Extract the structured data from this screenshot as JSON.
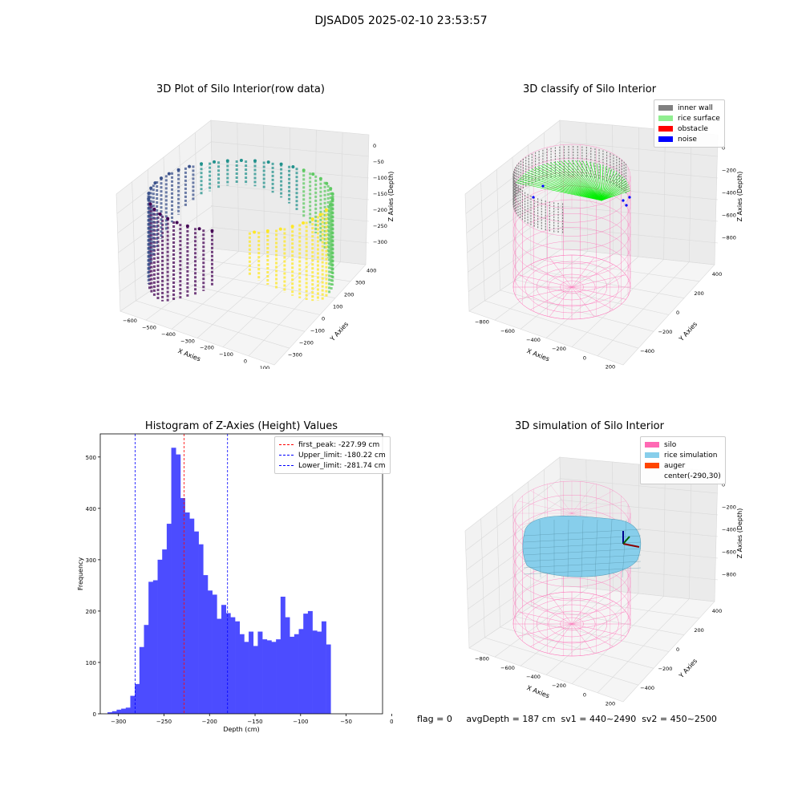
{
  "suptitle": "DJSAD05 2025-02-10 23:53:57",
  "panels": {
    "raw": {
      "title": "3D Plot of Silo Interior(row data)",
      "xlabel": "X Axies",
      "ylabel": "Y Axies",
      "zlabel": "Z Axies (Depth)",
      "xticks": [
        "−600",
        "−500",
        "−400",
        "−300",
        "−200",
        "−100",
        "0",
        "100"
      ],
      "yticks": [
        "−300",
        "−200",
        "−100",
        "0",
        "100",
        "200",
        "300",
        "400"
      ],
      "zticks": [
        "0",
        "−50",
        "−100",
        "−150",
        "−200",
        "−250",
        "−300"
      ]
    },
    "classify": {
      "title": "3D classify of Silo Interior",
      "xlabel": "X Axies",
      "ylabel": "Y Axies",
      "zlabel": "Z Axies (Depth)",
      "xticks": [
        "−800",
        "−600",
        "−400",
        "−200",
        "0",
        "200"
      ],
      "yticks": [
        "−400",
        "−200",
        "0",
        "200",
        "400"
      ],
      "zticks": [
        "0",
        "−200",
        "−400",
        "−600",
        "−800"
      ],
      "legend": [
        {
          "label": "inner wall",
          "color": "#808080"
        },
        {
          "label": "rice surface",
          "color": "#90ee90"
        },
        {
          "label": "obstacle",
          "color": "#ff0000"
        },
        {
          "label": "noise",
          "color": "#0000ff"
        }
      ]
    },
    "simulation": {
      "title": "3D simulation of Silo Interior",
      "xlabel": "X Axies",
      "ylabel": "Y Axies",
      "zlabel": "Z Axies (Depth)",
      "xticks": [
        "−800",
        "−600",
        "−400",
        "−200",
        "0",
        "200"
      ],
      "yticks": [
        "−400",
        "−200",
        "0",
        "200",
        "400"
      ],
      "zticks": [
        "0",
        "−200",
        "−400",
        "−600",
        "−800"
      ],
      "legend": [
        {
          "label": "silo",
          "color": "#ff69b4"
        },
        {
          "label": "rice simulation",
          "color": "#87ceeb"
        },
        {
          "label": "auger",
          "color": "#ff4500"
        },
        {
          "label": "center(-290,30)",
          "color": ""
        }
      ]
    }
  },
  "status": "flag = 0     avgDepth = 187 cm  sv1 = 440~2490  sv2 = 450~2500",
  "chart_data": {
    "type": "bar",
    "title": "Histogram of Z-Axies (Height) Values",
    "xlabel": "Depth (cm)",
    "ylabel": "Frequency",
    "xlim": [
      -320,
      -10
    ],
    "ylim": [
      0,
      545
    ],
    "xticks": [
      -300,
      -250,
      -200,
      -150,
      -100,
      -50,
      0
    ],
    "yticks": [
      0,
      100,
      200,
      300,
      400,
      500
    ],
    "bin_start": -312,
    "bin_width": 5,
    "bar_color": "#4c4cff",
    "values": [
      3,
      5,
      8,
      10,
      12,
      35,
      58,
      130,
      173,
      257,
      260,
      300,
      320,
      370,
      518,
      505,
      420,
      392,
      380,
      355,
      330,
      270,
      240,
      232,
      185,
      212,
      196,
      188,
      180,
      155,
      140,
      160,
      132,
      160,
      145,
      143,
      140,
      145,
      228,
      188,
      150,
      155,
      165,
      195,
      200,
      162,
      160,
      180,
      135
    ],
    "lines": [
      {
        "label": "first_peak: -227.99 cm",
        "value": -227.99,
        "color": "#ff0000"
      },
      {
        "label": "Upper_limit: -180.22 cm",
        "value": -180.22,
        "color": "#0000ff"
      },
      {
        "label": "Lower_limit: -281.74 cm",
        "value": -281.74,
        "color": "#0000ff"
      }
    ],
    "legend_position": "top-right"
  }
}
